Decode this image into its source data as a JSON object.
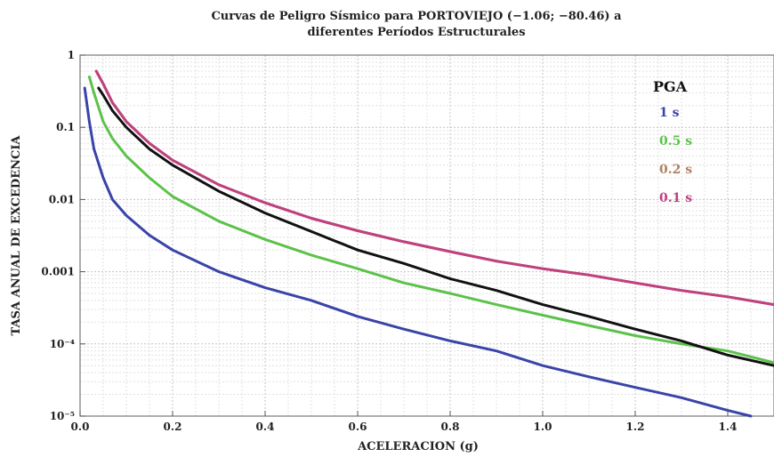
{
  "chart_data": {
    "type": "line",
    "title_lines": [
      "Curvas de Peligro Sísmico para PORTOVIEJO (−1.06; −80.46) a",
      "diferentes Períodos Estructurales"
    ],
    "xlabel": "ACELERACION (g)",
    "ylabel": "TASA ANUAL DE EXCEDENCIA",
    "xlim": [
      0,
      1.5
    ],
    "ylim": [
      1e-05,
      1
    ],
    "y_scale": "log",
    "grid": true,
    "x_ticks": [
      0,
      0.2,
      0.4,
      0.6,
      0.8,
      1.0,
      1.2,
      1.4
    ],
    "x_tick_labels": [
      "0.0",
      "0.2",
      "0.4",
      "0.6",
      "0.8",
      "1.0",
      "1.2",
      "1.4"
    ],
    "y_ticks": [
      1e-05,
      0.0001,
      0.001,
      0.01,
      0.1,
      1
    ],
    "y_tick_labels": [
      "10⁻⁵",
      "10⁻⁴",
      "0.001",
      "0.01",
      "0.1",
      "1"
    ],
    "legend_title": "PGA",
    "legend_position": "top-right",
    "series": [
      {
        "name": "1 s",
        "color": "#3a44a8",
        "x": [
          0.01,
          0.02,
          0.03,
          0.05,
          0.07,
          0.1,
          0.15,
          0.2,
          0.3,
          0.4,
          0.5,
          0.6,
          0.7,
          0.8,
          0.9,
          1.0,
          1.1,
          1.2,
          1.3,
          1.4,
          1.45
        ],
        "y": [
          0.35,
          0.12,
          0.05,
          0.02,
          0.01,
          0.006,
          0.0032,
          0.002,
          0.001,
          0.0006,
          0.0004,
          0.00024,
          0.00016,
          0.00011,
          8e-05,
          5e-05,
          3.5e-05,
          2.5e-05,
          1.8e-05,
          1.2e-05,
          1e-05
        ]
      },
      {
        "name": "0.5 s",
        "color": "#5cc24a",
        "x": [
          0.02,
          0.03,
          0.05,
          0.07,
          0.1,
          0.15,
          0.2,
          0.3,
          0.4,
          0.5,
          0.6,
          0.7,
          0.8,
          0.9,
          1.0,
          1.1,
          1.2,
          1.3,
          1.4,
          1.5
        ],
        "y": [
          0.5,
          0.3,
          0.12,
          0.07,
          0.04,
          0.02,
          0.011,
          0.005,
          0.0028,
          0.0017,
          0.0011,
          0.0007,
          0.0005,
          0.00035,
          0.00025,
          0.00018,
          0.00013,
          0.0001,
          8e-05,
          5.5e-05
        ]
      },
      {
        "name": "0.2 s",
        "color": "#b08060",
        "x": [
          0.035,
          0.05,
          0.07,
          0.1,
          0.15,
          0.2,
          0.3,
          0.4,
          0.5,
          0.6,
          0.7,
          0.8,
          0.9,
          1.0,
          1.1,
          1.2,
          1.3,
          1.4,
          1.5
        ],
        "y": [
          0.6,
          0.4,
          0.22,
          0.12,
          0.06,
          0.035,
          0.016,
          0.009,
          0.0055,
          0.0037,
          0.0026,
          0.0019,
          0.0014,
          0.0011,
          0.0009,
          0.0007,
          0.00055,
          0.00045,
          0.00035
        ]
      },
      {
        "name": "0.1 s",
        "color": "#c0407f",
        "x": [
          0.035,
          0.05,
          0.07,
          0.1,
          0.15,
          0.2,
          0.3,
          0.4,
          0.5,
          0.6,
          0.7,
          0.8,
          0.9,
          1.0,
          1.1,
          1.2,
          1.3,
          1.4,
          1.5
        ],
        "y": [
          0.6,
          0.4,
          0.22,
          0.12,
          0.06,
          0.035,
          0.016,
          0.009,
          0.0055,
          0.0037,
          0.0026,
          0.0019,
          0.0014,
          0.0011,
          0.0009,
          0.0007,
          0.00055,
          0.00045,
          0.00035
        ]
      },
      {
        "name": "PGA",
        "color": "#111111",
        "x": [
          0.04,
          0.05,
          0.07,
          0.1,
          0.15,
          0.2,
          0.3,
          0.4,
          0.5,
          0.6,
          0.7,
          0.8,
          0.9,
          1.0,
          1.1,
          1.2,
          1.3,
          1.4,
          1.5
        ],
        "y": [
          0.35,
          0.28,
          0.17,
          0.1,
          0.05,
          0.03,
          0.013,
          0.0065,
          0.0036,
          0.002,
          0.0013,
          0.0008,
          0.00055,
          0.00035,
          0.00024,
          0.00016,
          0.00011,
          7e-05,
          5e-05
        ]
      }
    ]
  }
}
